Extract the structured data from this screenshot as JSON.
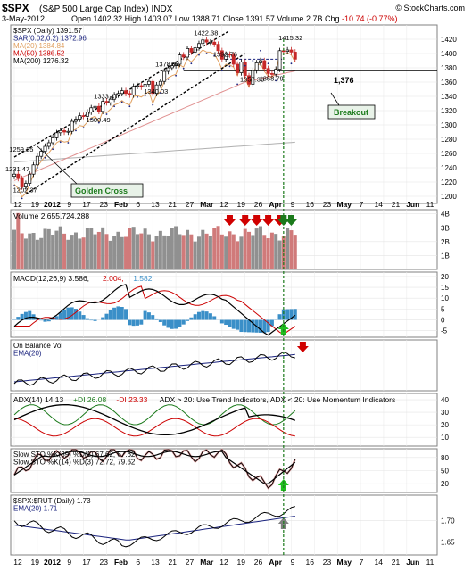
{
  "header": {
    "symbol_title": "$SPX",
    "name": "S&P 500 Large Cap Index",
    "exchange": "INDX",
    "date": "3-May-2012",
    "open_label": "Open",
    "open": "1402.32",
    "high_label": "High",
    "high": "1403.07",
    "low_label": "Low",
    "low": "1388.71",
    "close_label": "Close",
    "close": "1391.57",
    "volume_label": "Volume",
    "volume": "2.7B",
    "chg_label": "Chg",
    "chg": "-10.74 (-0.77%)",
    "watermark": "© StockCharts.com"
  },
  "x_axis": {
    "ticks": [
      "12",
      "19",
      "2012",
      "9",
      "17",
      "23",
      "Feb",
      "6",
      "13",
      "21",
      "27",
      "Mar",
      "12",
      "19",
      "26",
      "Apr",
      "9",
      "16",
      "23",
      "May",
      "7",
      "14",
      "21",
      "Jun",
      "11"
    ]
  },
  "chart_data": [
    {
      "id": "price",
      "type": "candlestick",
      "legend": [
        {
          "text": "$SPX (Daily) 1391.57",
          "color": "#000000"
        },
        {
          "text": "SAR(0.02,0.2) 1372.96",
          "color": "#1a237e"
        },
        {
          "text": "MA(20) 1384.84",
          "color": "#e0a060"
        },
        {
          "text": "MA(50) 1386.52",
          "color": "#cc0000"
        },
        {
          "text": "MA(200) 1276.32",
          "color": "#000000"
        }
      ],
      "y_ticks": [
        1200,
        1220,
        1240,
        1260,
        1280,
        1300,
        1320,
        1340,
        1360,
        1380,
        1400,
        1420
      ],
      "ylim": [
        1190,
        1440
      ],
      "closes": [
        1231,
        1225,
        1213,
        1218,
        1231,
        1244,
        1256,
        1263,
        1270,
        1275,
        1282,
        1289,
        1292,
        1290,
        1291,
        1305,
        1308,
        1313,
        1312,
        1318,
        1324,
        1326,
        1319,
        1333,
        1331,
        1336,
        1342,
        1344,
        1348,
        1344,
        1342,
        1354,
        1355,
        1353,
        1357,
        1361,
        1344,
        1356,
        1361,
        1375,
        1380,
        1383,
        1385,
        1398,
        1395,
        1407,
        1402,
        1408,
        1414,
        1419,
        1416,
        1416,
        1413,
        1404,
        1392,
        1399,
        1398,
        1385,
        1373,
        1388,
        1369,
        1357,
        1376,
        1387,
        1390,
        1379,
        1372,
        1371,
        1378,
        1404,
        1403,
        1405,
        1402,
        1392
      ],
      "annotations": [
        {
          "label": "1231.47",
          "i": 0,
          "v": 1231
        },
        {
          "label": "1202.37",
          "i": 2,
          "v": 1202
        },
        {
          "label": "1259.25",
          "i": 1,
          "v": 1259
        },
        {
          "label": "1300.49",
          "i": 21,
          "v": 1300
        },
        {
          "label": "1333.47",
          "i": 23,
          "v": 1333
        },
        {
          "label": "1340.03",
          "i": 36,
          "v": 1340
        },
        {
          "label": "1378.04",
          "i": 39,
          "v": 1378
        },
        {
          "label": "1422.38",
          "i": 49,
          "v": 1422
        },
        {
          "label": "1392.76",
          "i": 54,
          "v": 1392
        },
        {
          "label": "1357.38",
          "i": 61,
          "v": 1357
        },
        {
          "label": "1358.79",
          "i": 66,
          "v": 1358
        },
        {
          "label": "1415.32",
          "i": 71,
          "v": 1415
        }
      ],
      "callouts": {
        "breakout": "Breakout",
        "golden_cross": "Golden Cross",
        "level": "1,376"
      }
    },
    {
      "id": "volume",
      "type": "bar",
      "legend": [
        {
          "text": "Volume 2,655,724,288",
          "color": "#000000"
        }
      ],
      "y_ticks": [
        "1B",
        "2B",
        "3B",
        "4B"
      ],
      "ylim": [
        0,
        4.3
      ]
    },
    {
      "id": "macd",
      "type": "line",
      "legend": [
        {
          "text": "MACD(12,26,9) 3.586,",
          "color": "#000000"
        },
        {
          "text": "2.004,",
          "color": "#cc0000"
        },
        {
          "text": "1.582",
          "color": "#3a8fc8"
        }
      ],
      "y_ticks": [
        -5,
        0,
        5,
        10,
        15,
        20
      ],
      "ylim": [
        -8,
        22
      ]
    },
    {
      "id": "obv",
      "type": "line",
      "legend": [
        {
          "text": "On Balance Vol",
          "color": "#000000"
        },
        {
          "text": "EMA(20)",
          "color": "#1a237e"
        }
      ]
    },
    {
      "id": "adx",
      "type": "line",
      "legend": [
        {
          "text": "ADX(14) 14.13",
          "color": "#000000"
        },
        {
          "text": "+DI 26.08",
          "color": "#1b7a1b"
        },
        {
          "text": "-DI 23.33",
          "color": "#cc0000"
        },
        {
          "text": "ADX > 20: Use Trend Indicators, ADX < 20: Use Momentum Indicators",
          "color": "#000000"
        }
      ],
      "y_ticks": [
        10,
        20,
        30,
        40
      ],
      "ylim": [
        3,
        45
      ]
    },
    {
      "id": "sto",
      "type": "line",
      "legend": [
        {
          "text": "Slow STO %K(39) %D(1) 67.62,",
          "color": "#000000"
        },
        {
          "text": "67.62",
          "color": "#cc0000"
        },
        {
          "text": "Slow STO %K(14) %D(3) 72.72,",
          "color": "#000000"
        },
        {
          "text": "79.62",
          "color": "#cc0000"
        }
      ],
      "y_ticks": [
        20,
        50,
        80
      ],
      "ylim": [
        0,
        100
      ]
    },
    {
      "id": "ratio",
      "type": "line",
      "legend": [
        {
          "text": "$SPX:$RUT (Daily) 1.73",
          "color": "#000000"
        },
        {
          "text": "EMA(20) 1.71",
          "color": "#1a237e"
        }
      ],
      "y_ticks": [
        "1.65",
        "1.70"
      ],
      "ylim": [
        1.62,
        1.76
      ]
    }
  ]
}
